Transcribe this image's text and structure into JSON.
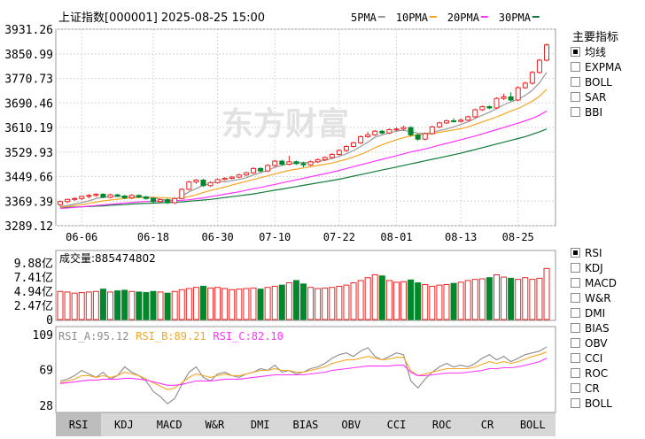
{
  "header": {
    "title": "上证指数[000001] 2025-08-25 15:00",
    "ma_legend": [
      {
        "label": "5PMA",
        "color": "#999999"
      },
      {
        "label": "10PMA",
        "color": "#f5a623"
      },
      {
        "label": "20PMA",
        "color": "#ff33ff"
      },
      {
        "label": "30PMA",
        "color": "#117a3a"
      }
    ]
  },
  "watermark": "东方财富",
  "sidebar": {
    "title": "主要指标",
    "main_indicators": [
      {
        "label": "均线",
        "checked": true
      },
      {
        "label": "EXPMA",
        "checked": false
      },
      {
        "label": "BOLL",
        "checked": false
      },
      {
        "label": "SAR",
        "checked": false
      },
      {
        "label": "BBI",
        "checked": false
      }
    ],
    "sub_indicators": [
      {
        "label": "RSI",
        "checked": true
      },
      {
        "label": "KDJ",
        "checked": false
      },
      {
        "label": "MACD",
        "checked": false
      },
      {
        "label": "W&R",
        "checked": false
      },
      {
        "label": "DMI",
        "checked": false
      },
      {
        "label": "BIAS",
        "checked": false
      },
      {
        "label": "OBV",
        "checked": false
      },
      {
        "label": "CCI",
        "checked": false
      },
      {
        "label": "ROC",
        "checked": false
      },
      {
        "label": "CR",
        "checked": false
      },
      {
        "label": "BOLL",
        "checked": false
      }
    ]
  },
  "tabs": [
    {
      "label": "RSI",
      "active": true
    },
    {
      "label": "KDJ",
      "active": false
    },
    {
      "label": "MACD",
      "active": false
    },
    {
      "label": "W&R",
      "active": false
    },
    {
      "label": "DMI",
      "active": false
    },
    {
      "label": "BIAS",
      "active": false
    },
    {
      "label": "OBV",
      "active": false
    },
    {
      "label": "CCI",
      "active": false
    },
    {
      "label": "ROC",
      "active": false
    },
    {
      "label": "CR",
      "active": false
    },
    {
      "label": "BOLL",
      "active": false
    }
  ],
  "colors": {
    "up": "#ee2222",
    "down": "#00882a",
    "grid": "#d6d6d6",
    "border": "#999999"
  },
  "chart_data": [
    {
      "type": "candlestick",
      "y_ticks": [
        "3931.26",
        "3850.99",
        "3770.73",
        "3690.46",
        "3610.19",
        "3529.93",
        "3449.66",
        "3369.39",
        "3289.12"
      ],
      "ylim": [
        3289.12,
        3931.26
      ],
      "x_ticks": [
        "06-06",
        "06-18",
        "06-30",
        "07-10",
        "07-22",
        "08-01",
        "08-13",
        "08-25"
      ],
      "x_tick_index": [
        3,
        13,
        22,
        30,
        39,
        47,
        56,
        64
      ],
      "candles": [
        [
          3358,
          3368,
          3352,
          3372
        ],
        [
          3368,
          3375,
          3362,
          3378
        ],
        [
          3375,
          3378,
          3370,
          3382
        ],
        [
          3378,
          3385,
          3373,
          3388
        ],
        [
          3385,
          3388,
          3378,
          3392
        ],
        [
          3388,
          3392,
          3383,
          3395
        ],
        [
          3392,
          3382,
          3379,
          3395
        ],
        [
          3382,
          3390,
          3378,
          3394
        ],
        [
          3390,
          3386,
          3383,
          3393
        ],
        [
          3386,
          3380,
          3376,
          3390
        ],
        [
          3380,
          3388,
          3376,
          3392
        ],
        [
          3388,
          3383,
          3379,
          3391
        ],
        [
          3383,
          3378,
          3374,
          3387
        ],
        [
          3378,
          3368,
          3362,
          3381
        ],
        [
          3368,
          3374,
          3364,
          3377
        ],
        [
          3374,
          3364,
          3360,
          3378
        ],
        [
          3364,
          3378,
          3360,
          3382
        ],
        [
          3378,
          3408,
          3375,
          3412
        ],
        [
          3408,
          3432,
          3404,
          3436
        ],
        [
          3432,
          3438,
          3426,
          3442
        ],
        [
          3438,
          3420,
          3416,
          3442
        ],
        [
          3420,
          3430,
          3416,
          3434
        ],
        [
          3430,
          3440,
          3426,
          3444
        ],
        [
          3440,
          3444,
          3436,
          3448
        ],
        [
          3444,
          3448,
          3440,
          3452
        ],
        [
          3448,
          3455,
          3444,
          3459
        ],
        [
          3455,
          3462,
          3450,
          3466
        ],
        [
          3462,
          3476,
          3458,
          3480
        ],
        [
          3476,
          3468,
          3464,
          3480
        ],
        [
          3468,
          3486,
          3464,
          3490
        ],
        [
          3486,
          3500,
          3480,
          3504
        ],
        [
          3500,
          3490,
          3486,
          3504
        ],
        [
          3490,
          3498,
          3486,
          3518
        ],
        [
          3498,
          3492,
          3488,
          3502
        ],
        [
          3492,
          3488,
          3480,
          3498
        ],
        [
          3488,
          3498,
          3484,
          3502
        ],
        [
          3498,
          3505,
          3494,
          3509
        ],
        [
          3505,
          3512,
          3500,
          3516
        ],
        [
          3512,
          3522,
          3508,
          3526
        ],
        [
          3522,
          3535,
          3518,
          3539
        ],
        [
          3535,
          3548,
          3530,
          3552
        ],
        [
          3548,
          3560,
          3544,
          3564
        ],
        [
          3560,
          3580,
          3556,
          3584
        ],
        [
          3580,
          3586,
          3576,
          3596
        ],
        [
          3586,
          3598,
          3582,
          3602
        ],
        [
          3598,
          3592,
          3588,
          3602
        ],
        [
          3592,
          3603,
          3588,
          3607
        ],
        [
          3603,
          3605,
          3598,
          3610
        ],
        [
          3605,
          3610,
          3600,
          3616
        ],
        [
          3610,
          3586,
          3580,
          3614
        ],
        [
          3586,
          3572,
          3566,
          3590
        ],
        [
          3572,
          3590,
          3568,
          3594
        ],
        [
          3590,
          3612,
          3586,
          3616
        ],
        [
          3612,
          3625,
          3608,
          3629
        ],
        [
          3625,
          3632,
          3621,
          3636
        ],
        [
          3632,
          3630,
          3626,
          3640
        ],
        [
          3630,
          3634,
          3626,
          3640
        ],
        [
          3634,
          3645,
          3630,
          3649
        ],
        [
          3645,
          3668,
          3640,
          3672
        ],
        [
          3668,
          3678,
          3664,
          3682
        ],
        [
          3678,
          3674,
          3670,
          3682
        ],
        [
          3674,
          3705,
          3670,
          3709
        ],
        [
          3705,
          3710,
          3700,
          3720
        ],
        [
          3710,
          3700,
          3696,
          3725
        ],
        [
          3700,
          3740,
          3696,
          3745
        ],
        [
          3740,
          3755,
          3736,
          3760
        ],
        [
          3755,
          3790,
          3750,
          3795
        ],
        [
          3790,
          3830,
          3786,
          3834
        ],
        [
          3830,
          3880,
          3826,
          3885
        ]
      ],
      "ma5": [
        3352,
        3355,
        3360,
        3365,
        3370,
        3378,
        3382,
        3384,
        3385,
        3384,
        3385,
        3384,
        3382,
        3380,
        3376,
        3372,
        3374,
        3386,
        3400,
        3410,
        3422,
        3426,
        3436,
        3432,
        3436,
        3440,
        3446,
        3455,
        3462,
        3470,
        3480,
        3486,
        3492,
        3494,
        3496,
        3495,
        3498,
        3503,
        3509,
        3516,
        3524,
        3535,
        3548,
        3562,
        3578,
        3586,
        3592,
        3598,
        3601,
        3596,
        3592,
        3590,
        3594,
        3600,
        3605,
        3612,
        3620,
        3628,
        3640,
        3650,
        3660,
        3672,
        3684,
        3694,
        3702,
        3715,
        3732,
        3756,
        3790
      ],
      "ma10": [
        3350,
        3352,
        3355,
        3358,
        3362,
        3366,
        3370,
        3373,
        3376,
        3378,
        3380,
        3381,
        3382,
        3382,
        3381,
        3380,
        3378,
        3380,
        3384,
        3390,
        3398,
        3404,
        3410,
        3415,
        3422,
        3428,
        3434,
        3440,
        3446,
        3452,
        3458,
        3464,
        3470,
        3474,
        3478,
        3482,
        3486,
        3490,
        3494,
        3500,
        3506,
        3514,
        3522,
        3532,
        3544,
        3554,
        3562,
        3570,
        3577,
        3582,
        3586,
        3588,
        3590,
        3594,
        3598,
        3602,
        3606,
        3612,
        3620,
        3628,
        3636,
        3645,
        3654,
        3664,
        3672,
        3684,
        3696,
        3712,
        3735
      ],
      "ma20": [
        3346,
        3347,
        3349,
        3351,
        3353,
        3355,
        3357,
        3359,
        3361,
        3363,
        3365,
        3367,
        3368,
        3369,
        3370,
        3370,
        3371,
        3372,
        3374,
        3377,
        3380,
        3384,
        3388,
        3392,
        3396,
        3400,
        3405,
        3410,
        3414,
        3419,
        3424,
        3429,
        3434,
        3439,
        3444,
        3449,
        3454,
        3459,
        3464,
        3470,
        3476,
        3482,
        3488,
        3494,
        3500,
        3506,
        3512,
        3518,
        3524,
        3530,
        3535,
        3540,
        3546,
        3552,
        3558,
        3564,
        3570,
        3576,
        3582,
        3589,
        3596,
        3603,
        3610,
        3617,
        3624,
        3632,
        3640,
        3650,
        3664
      ],
      "ma30": [
        3348,
        3349,
        3350,
        3351,
        3352,
        3353,
        3354,
        3356,
        3357,
        3358,
        3360,
        3361,
        3362,
        3363,
        3364,
        3365,
        3366,
        3367,
        3369,
        3371,
        3373,
        3375,
        3378,
        3381,
        3384,
        3387,
        3390,
        3393,
        3397,
        3401,
        3405,
        3409,
        3413,
        3417,
        3421,
        3425,
        3429,
        3433,
        3437,
        3441,
        3446,
        3451,
        3456,
        3461,
        3466,
        3471,
        3476,
        3481,
        3486,
        3491,
        3496,
        3501,
        3506,
        3511,
        3516,
        3521,
        3526,
        3532,
        3538,
        3544,
        3550,
        3556,
        3562,
        3568,
        3574,
        3580,
        3588,
        3596,
        3605
      ]
    },
    {
      "type": "bar",
      "title": "成交量:885474802",
      "y_ticks": [
        "9.88亿",
        "7.41亿",
        "4.94亿",
        "2.47亿",
        "0"
      ],
      "ylim": [
        0,
        9.88
      ],
      "values": [
        4.9,
        4.8,
        4.6,
        4.7,
        4.8,
        4.9,
        5.3,
        4.8,
        5.0,
        5.1,
        4.9,
        4.8,
        4.7,
        4.9,
        4.8,
        4.6,
        4.9,
        5.2,
        5.4,
        5.6,
        5.8,
        5.5,
        5.6,
        5.4,
        5.2,
        5.3,
        5.4,
        5.5,
        5.3,
        5.6,
        5.8,
        6.0,
        6.4,
        6.8,
        6.2,
        5.6,
        5.4,
        5.5,
        5.6,
        5.8,
        6.0,
        6.4,
        6.8,
        7.3,
        7.8,
        7.6,
        6.8,
        6.5,
        6.6,
        6.9,
        6.4,
        6.1,
        5.8,
        6.0,
        6.1,
        6.3,
        6.5,
        6.8,
        7.0,
        7.1,
        7.3,
        7.8,
        7.4,
        7.2,
        7.0,
        7.3,
        7.0,
        7.2,
        8.9
      ],
      "latest": 8.85
    },
    {
      "type": "line",
      "series_labels": [
        "RSI_A:95.12",
        "RSI_B:89.21",
        "RSI_C:82.10"
      ],
      "series_colors": [
        "#8c8c8c",
        "#f5a623",
        "#ff33ff"
      ],
      "y_ticks": [
        "109",
        "69",
        "28"
      ],
      "ylim": [
        20,
        115
      ],
      "series": [
        {
          "name": "RSI_A",
          "values": [
            56,
            58,
            62,
            68,
            64,
            60,
            66,
            58,
            62,
            72,
            66,
            62,
            56,
            44,
            38,
            30,
            36,
            52,
            66,
            72,
            60,
            56,
            64,
            66,
            62,
            60,
            64,
            66,
            70,
            68,
            74,
            66,
            68,
            64,
            66,
            70,
            72,
            76,
            82,
            86,
            88,
            84,
            90,
            94,
            84,
            80,
            84,
            88,
            86,
            56,
            48,
            58,
            66,
            72,
            76,
            72,
            74,
            72,
            76,
            82,
            86,
            80,
            84,
            78,
            82,
            86,
            88,
            90,
            95
          ]
        },
        {
          "name": "RSI_B",
          "values": [
            54,
            56,
            58,
            62,
            62,
            60,
            62,
            60,
            62,
            66,
            64,
            62,
            58,
            54,
            50,
            46,
            48,
            54,
            60,
            64,
            62,
            60,
            62,
            64,
            62,
            62,
            64,
            66,
            68,
            68,
            70,
            68,
            68,
            66,
            66,
            68,
            70,
            72,
            76,
            78,
            80,
            80,
            82,
            84,
            82,
            80,
            81,
            83,
            83,
            68,
            62,
            64,
            66,
            68,
            70,
            70,
            70,
            70,
            72,
            75,
            78,
            76,
            78,
            76,
            78,
            81,
            84,
            86,
            89
          ]
        },
        {
          "name": "RSI_C",
          "values": [
            53,
            54,
            55,
            56,
            57,
            57,
            58,
            58,
            58,
            59,
            59,
            58,
            57,
            55,
            53,
            51,
            51,
            52,
            54,
            56,
            56,
            56,
            57,
            58,
            58,
            58,
            59,
            60,
            61,
            62,
            63,
            63,
            63,
            63,
            63,
            64,
            65,
            66,
            68,
            69,
            70,
            71,
            72,
            73,
            73,
            73,
            73,
            74,
            74,
            66,
            62,
            62,
            63,
            64,
            65,
            65,
            65,
            66,
            67,
            68,
            70,
            70,
            71,
            71,
            72,
            74,
            76,
            78,
            82
          ]
        }
      ]
    }
  ]
}
